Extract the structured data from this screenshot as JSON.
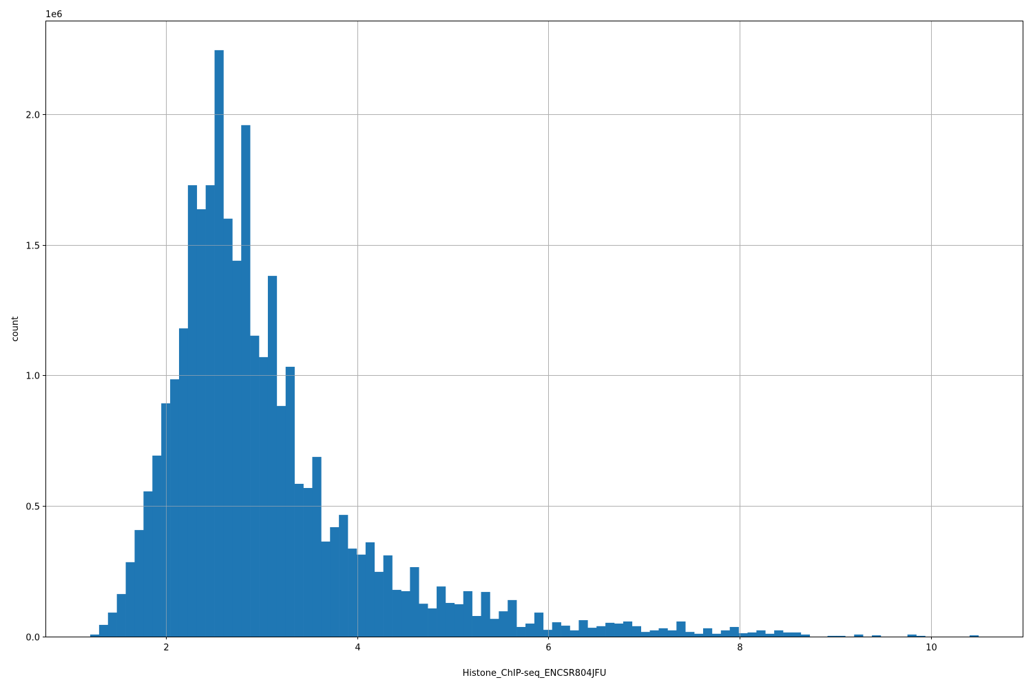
{
  "chart_data": {
    "type": "bar",
    "subtype": "histogram",
    "xlabel": "Histone_ChIP-seq_ENCSR804JFU",
    "ylabel": "count",
    "y_offset_label": "1e6",
    "xlim": [
      0.74,
      10.96
    ],
    "ylim": [
      0,
      2358000
    ],
    "bin_start": 1.208,
    "bin_width": 0.0929,
    "grid": true,
    "bar_color": "#1f77b4",
    "grid_color": "#b0b0b0",
    "x_ticks": [
      2,
      4,
      6,
      8,
      10
    ],
    "x_tick_labels": [
      "2",
      "4",
      "6",
      "8",
      "10"
    ],
    "y_ticks": [
      0,
      500000,
      1000000,
      1500000,
      2000000
    ],
    "y_tick_labels": [
      "0.0",
      "0.5",
      "1.0",
      "1.5",
      "2.0"
    ],
    "values": [
      8000,
      45000,
      92000,
      163000,
      285000,
      408000,
      556000,
      693000,
      893000,
      985000,
      1180000,
      1728000,
      1636000,
      1728000,
      2245000,
      1600000,
      1439000,
      1958000,
      1152000,
      1070000,
      1381000,
      883000,
      1033000,
      585000,
      569000,
      688000,
      364000,
      419000,
      466000,
      337000,
      314000,
      361000,
      248000,
      311000,
      179000,
      174000,
      266000,
      126000,
      108000,
      192000,
      129000,
      124000,
      174000,
      79000,
      171000,
      68000,
      97000,
      140000,
      37000,
      50000,
      92000,
      26000,
      55000,
      42000,
      24000,
      63000,
      34000,
      40000,
      53000,
      50000,
      58000,
      40000,
      18000,
      24000,
      32000,
      24000,
      58000,
      18000,
      11000,
      32000,
      11000,
      24000,
      37000,
      13000,
      16000,
      24000,
      11000,
      24000,
      16000,
      16000,
      8000,
      0,
      0,
      3000,
      3000,
      0,
      8000,
      0,
      5000,
      0,
      0,
      0,
      8000,
      3000,
      0,
      0,
      0,
      0,
      0,
      5000
    ]
  }
}
